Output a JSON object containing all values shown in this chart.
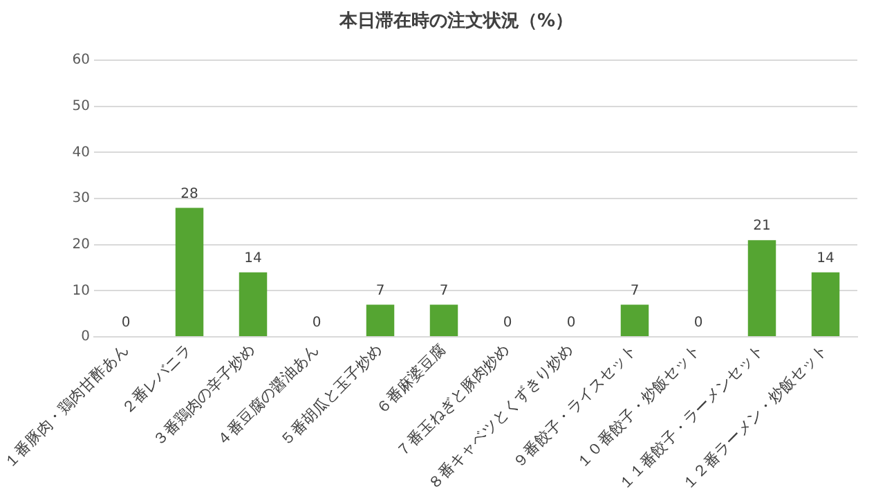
{
  "chart_data": {
    "type": "bar",
    "title": "本日滞在時の注文状況（%）",
    "categories": [
      "１番豚肉・鶏肉甘酢あん",
      "２番レバニラ",
      "３番鶏肉の辛子炒め",
      "４番豆腐の醤油あん",
      "５番胡瓜と玉子炒め",
      "６番麻婆豆腐",
      "７番玉ねぎと豚肉炒め",
      "８番キャベツとくずきり炒め",
      "９番餃子・ライスセット",
      "１０番餃子・炒飯セット",
      "１１番餃子・ラーメンセット",
      "１２番ラーメン・炒飯セット"
    ],
    "values": [
      0,
      28,
      14,
      0,
      7,
      7,
      0,
      0,
      7,
      0,
      21,
      14
    ],
    "color": "#55a532",
    "ylim": [
      0,
      60
    ],
    "yticks": [
      0,
      10,
      20,
      30,
      40,
      50,
      60
    ],
    "grid": "y",
    "data_labels": true
  }
}
